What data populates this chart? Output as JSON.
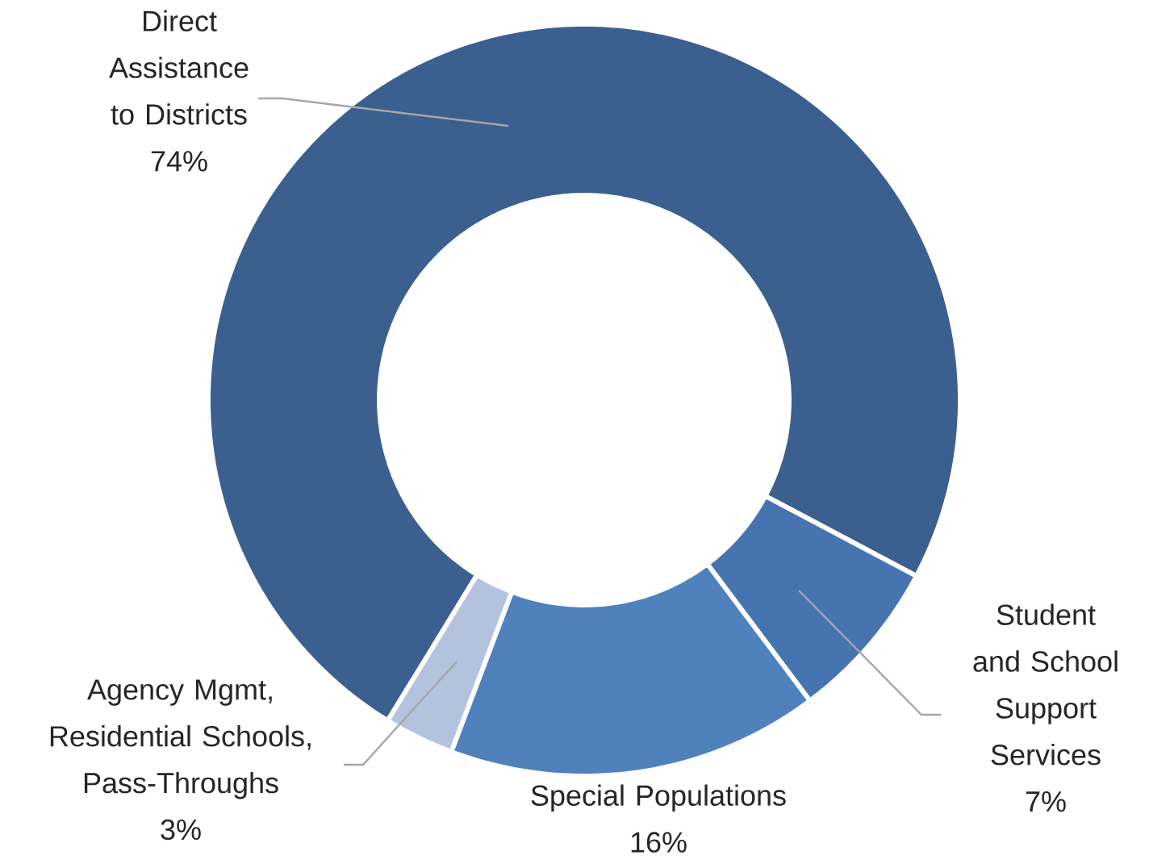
{
  "chart_data": {
    "type": "donut",
    "categories": [
      "Direct Assistance to Districts",
      "Student and School Support Services",
      "Special Populations",
      "Agency Mgmt, Residential Schools, Pass-Throughs"
    ],
    "values": [
      74,
      7,
      16,
      3
    ],
    "colors": [
      "#3b5f8e",
      "#4674b0",
      "#4f81bd",
      "#b4c3dd"
    ],
    "value_labels": [
      "74%",
      "7%",
      "16%",
      "3%"
    ]
  }
}
